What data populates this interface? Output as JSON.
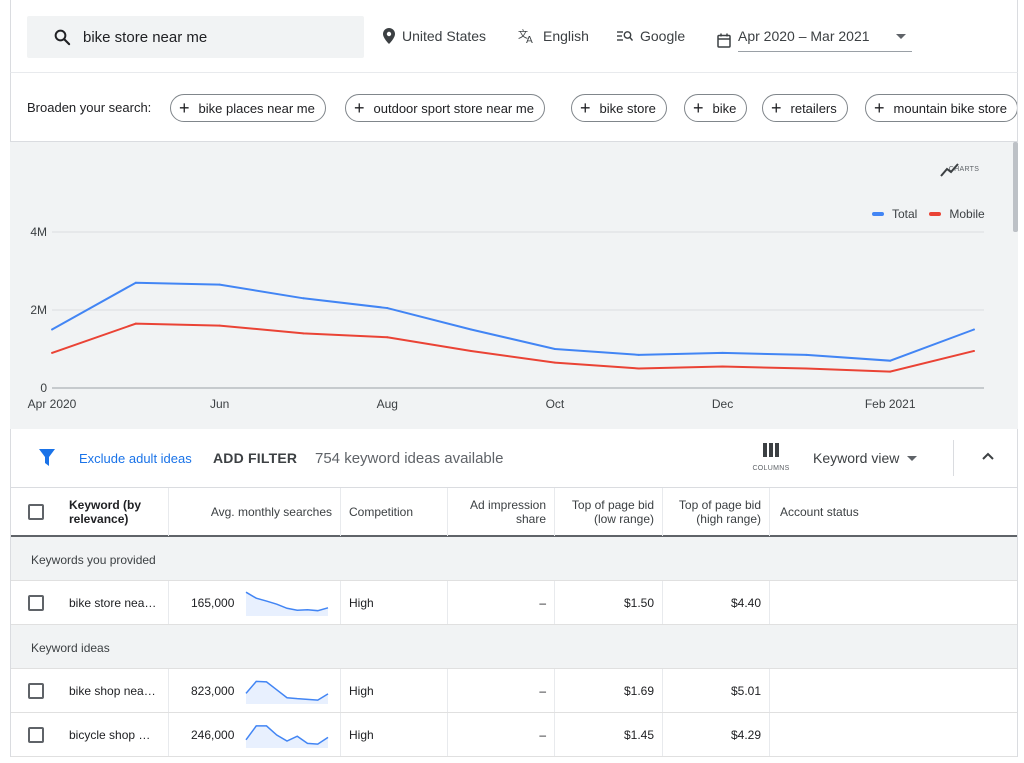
{
  "search": {
    "query": "bike store near me",
    "location": "United States",
    "language": "English",
    "network": "Google",
    "date_range": "Apr 2020 – Mar 2021"
  },
  "broaden": {
    "label": "Broaden your search:",
    "chips": [
      "bike places near me",
      "outdoor sport store near me",
      "bike store",
      "bike",
      "retailers",
      "mountain bike store"
    ]
  },
  "chart": {
    "charts_label": "CHARTS",
    "legend": {
      "total": "Total",
      "mobile": "Mobile"
    },
    "y_ticks": [
      "4M",
      "2M",
      "0"
    ],
    "x_ticks": [
      "Apr 2020",
      "Jun",
      "Aug",
      "Oct",
      "Dec",
      "Feb 2021"
    ]
  },
  "chart_data": {
    "type": "line",
    "x": [
      "Apr 2020",
      "May 2020",
      "Jun 2020",
      "Jul 2020",
      "Aug 2020",
      "Sep 2020",
      "Oct 2020",
      "Nov 2020",
      "Dec 2020",
      "Jan 2021",
      "Feb 2021",
      "Mar 2021"
    ],
    "series": [
      {
        "name": "Total",
        "color": "#4285f4",
        "values": [
          1500000,
          2700000,
          2650000,
          2300000,
          2050000,
          1500000,
          1000000,
          850000,
          900000,
          850000,
          700000,
          1500000
        ]
      },
      {
        "name": "Mobile",
        "color": "#ea4335",
        "values": [
          900000,
          1650000,
          1600000,
          1400000,
          1300000,
          950000,
          650000,
          500000,
          550000,
          500000,
          420000,
          950000
        ]
      }
    ],
    "ylim": [
      0,
      4000000
    ],
    "legend_position": "top-right",
    "grid": true
  },
  "filterbar": {
    "exclude_label": "Exclude adult ideas",
    "add_filter": "ADD FILTER",
    "count": "754 keyword ideas available",
    "columns_label": "COLUMNS",
    "view_label": "Keyword view"
  },
  "table": {
    "headers": {
      "keyword": "Keyword (by relevance)",
      "searches": "Avg. monthly searches",
      "competition": "Competition",
      "impression": "Ad impression share",
      "bid_low": "Top of page bid (low range)",
      "bid_high": "Top of page bid (high range)",
      "status": "Account status"
    },
    "group_provided": "Keywords you provided",
    "group_ideas": "Keyword ideas",
    "rows": [
      {
        "keyword": "bike store nea…",
        "searches": "165,000",
        "competition": "High",
        "impression": "–",
        "bid_low": "$1.50",
        "bid_high": "$4.40",
        "trend": [
          95,
          70,
          58,
          45,
          28,
          20,
          22,
          18,
          30
        ]
      },
      {
        "keyword": "bike shop nea…",
        "searches": "823,000",
        "competition": "High",
        "impression": "–",
        "bid_low": "$1.69",
        "bid_high": "$5.01",
        "trend": [
          40,
          90,
          88,
          55,
          22,
          18,
          15,
          12,
          38
        ]
      },
      {
        "keyword": "bicycle shop …",
        "searches": "246,000",
        "competition": "High",
        "impression": "–",
        "bid_low": "$1.45",
        "bid_high": "$4.29",
        "trend": [
          30,
          88,
          88,
          50,
          25,
          45,
          15,
          12,
          40
        ]
      }
    ]
  }
}
